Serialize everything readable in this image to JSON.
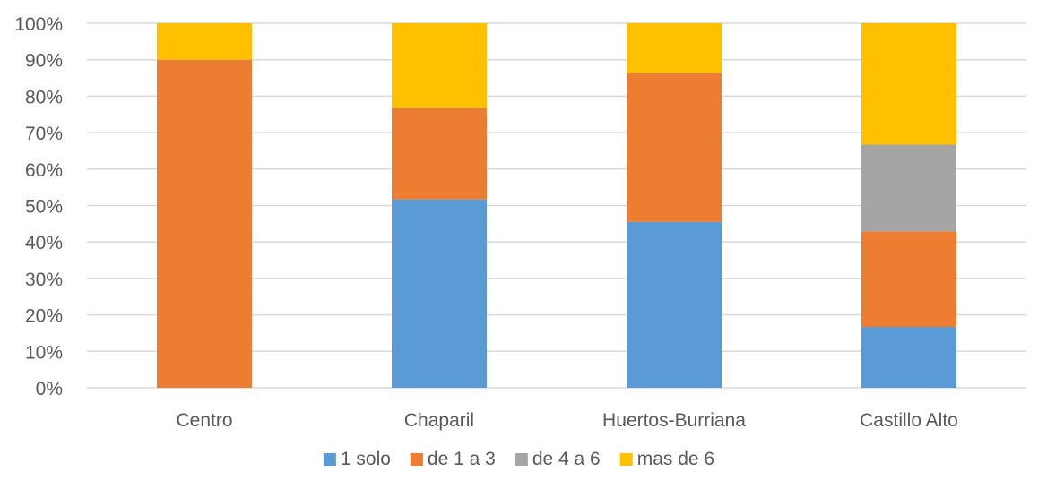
{
  "chart_data": {
    "type": "bar",
    "stacked": true,
    "percent": true,
    "categories": [
      "Centro",
      "Chaparil",
      "Huertos-Burriana",
      "Castillo Alto"
    ],
    "series": [
      {
        "name": "1 solo",
        "color": "#5b9bd5",
        "values": [
          0,
          51.7,
          45.5,
          16.7
        ]
      },
      {
        "name": "de 1 a 3",
        "color": "#ed7d31",
        "values": [
          90.0,
          25.0,
          40.9,
          26.2
        ]
      },
      {
        "name": "de 4 a 6",
        "color": "#a5a5a5",
        "values": [
          0,
          0,
          0,
          23.8
        ]
      },
      {
        "name": "mas de 6",
        "color": "#ffc000",
        "values": [
          10.0,
          23.3,
          13.6,
          33.3
        ]
      }
    ],
    "ylim": [
      0,
      100
    ],
    "yticks": [
      "0%",
      "10%",
      "20%",
      "30%",
      "40%",
      "50%",
      "60%",
      "70%",
      "80%",
      "90%",
      "100%"
    ],
    "grid": true,
    "legend_position": "bottom",
    "gridline_color": "#d9d9d9",
    "text_color": "#595959"
  }
}
